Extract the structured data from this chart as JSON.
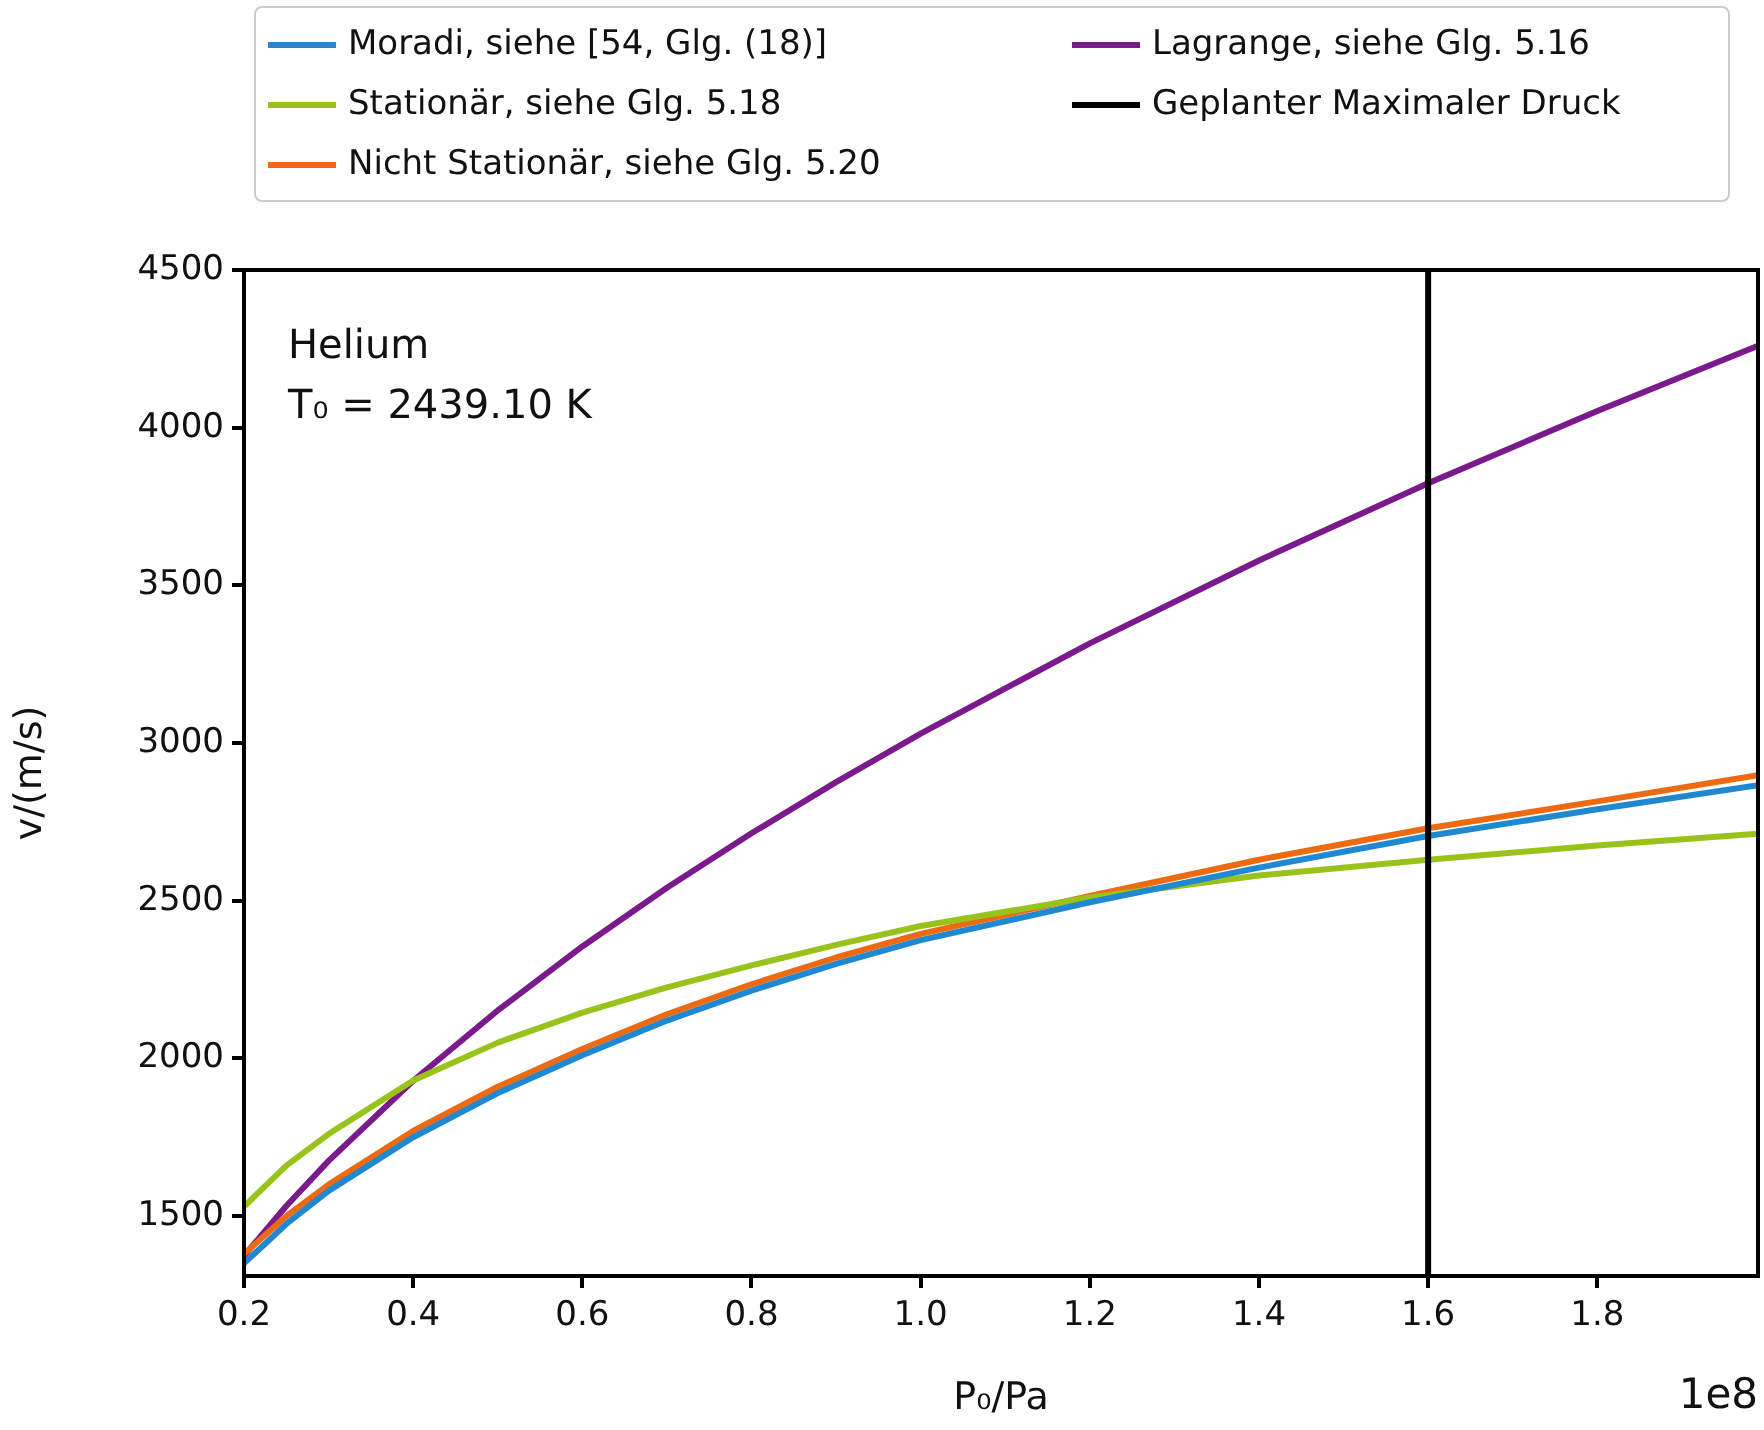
{
  "chart_data": {
    "type": "line",
    "xlabel": "P₀/Pa",
    "ylabel": "v/(m/s)",
    "x": [
      0.2,
      0.25,
      0.3,
      0.4,
      0.5,
      0.6,
      0.7,
      0.8,
      0.9,
      1.0,
      1.2,
      1.4,
      1.6,
      1.8,
      1.99
    ],
    "series": [
      {
        "name": "Moradi, siehe [54, Glg. (18)]",
        "color": "#1f88d0",
        "values": [
          1350,
          1475,
          1580,
          1750,
          1890,
          2010,
          2120,
          2215,
          2300,
          2375,
          2495,
          2605,
          2705,
          2790,
          2866
        ]
      },
      {
        "name": "Stationär, siehe Glg. 5.18",
        "color": "#99c31a",
        "values": [
          1530,
          1660,
          1760,
          1930,
          2050,
          2145,
          2225,
          2295,
          2360,
          2420,
          2510,
          2580,
          2630,
          2675,
          2712
        ]
      },
      {
        "name": "Nicht Stationär, siehe Glg. 5.20",
        "color": "#ee6a10",
        "values": [
          1380,
          1500,
          1600,
          1770,
          1910,
          2030,
          2140,
          2235,
          2320,
          2395,
          2515,
          2630,
          2730,
          2815,
          2898
        ]
      },
      {
        "name": "Lagrange, siehe Glg. 5.16",
        "color": "#7b1a8c",
        "values": [
          1374,
          1532,
          1675,
          1929,
          2152,
          2355,
          2541,
          2714,
          2876,
          3030,
          3316,
          3579,
          3824,
          4053,
          4260
        ]
      }
    ],
    "ref_lines": [
      {
        "axis": "x",
        "value": 1.6,
        "label": "Geplanter Maximaler Druck",
        "color": "#000000"
      }
    ],
    "xlim": [
      0.2,
      1.99
    ],
    "xticks": [
      0.2,
      0.4,
      0.6,
      0.8,
      {
        "value": 1.0,
        "label": "1.0"
      },
      1.2,
      1.4,
      1.6,
      1.8
    ],
    "ylim": [
      1310,
      4500
    ],
    "yticks": [
      1500,
      2000,
      2500,
      3000,
      3500,
      4000,
      4500
    ],
    "annotations": [
      "Helium",
      "T₀ = 2439.10 K",
      "1e8"
    ],
    "legend": "top",
    "marker": "none",
    "line_style": "solid"
  }
}
